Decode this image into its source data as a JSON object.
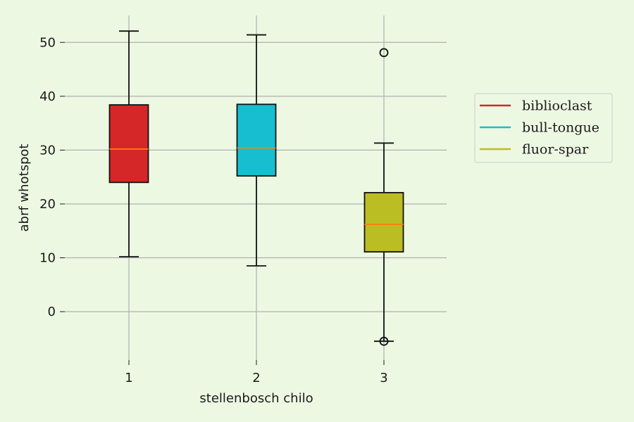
{
  "chart_data": {
    "type": "box",
    "xlabel": "stellenbosch chilo",
    "ylabel": "abrf whotspot",
    "categories": [
      "1",
      "2",
      "3"
    ],
    "ylim": [
      -9,
      55
    ],
    "yticks": [
      0,
      10,
      20,
      30,
      40,
      50
    ],
    "grid": true,
    "legend": {
      "placement": "right",
      "entries": [
        "biblioclast",
        "bull-tongue",
        "fluor-spar"
      ]
    },
    "series": [
      {
        "name": "biblioclast",
        "color": "#d62728",
        "whisker_low": 10.2,
        "q1": 24.0,
        "median": 30.2,
        "q3": 38.4,
        "whisker_high": 52.1,
        "outliers": []
      },
      {
        "name": "bull-tongue",
        "color": "#17becf",
        "whisker_low": 8.5,
        "q1": 25.2,
        "median": 30.4,
        "q3": 38.5,
        "whisker_high": 51.4,
        "outliers": []
      },
      {
        "name": "fluor-spar",
        "color": "#bcbd22",
        "whisker_low": -5.5,
        "q1": 11.1,
        "median": 16.2,
        "q3": 22.1,
        "whisker_high": 31.3,
        "outliers": [
          48.1,
          -5.5
        ]
      }
    ],
    "median_color": "#ff7f0e",
    "grid_color": "#b0b0b0"
  }
}
